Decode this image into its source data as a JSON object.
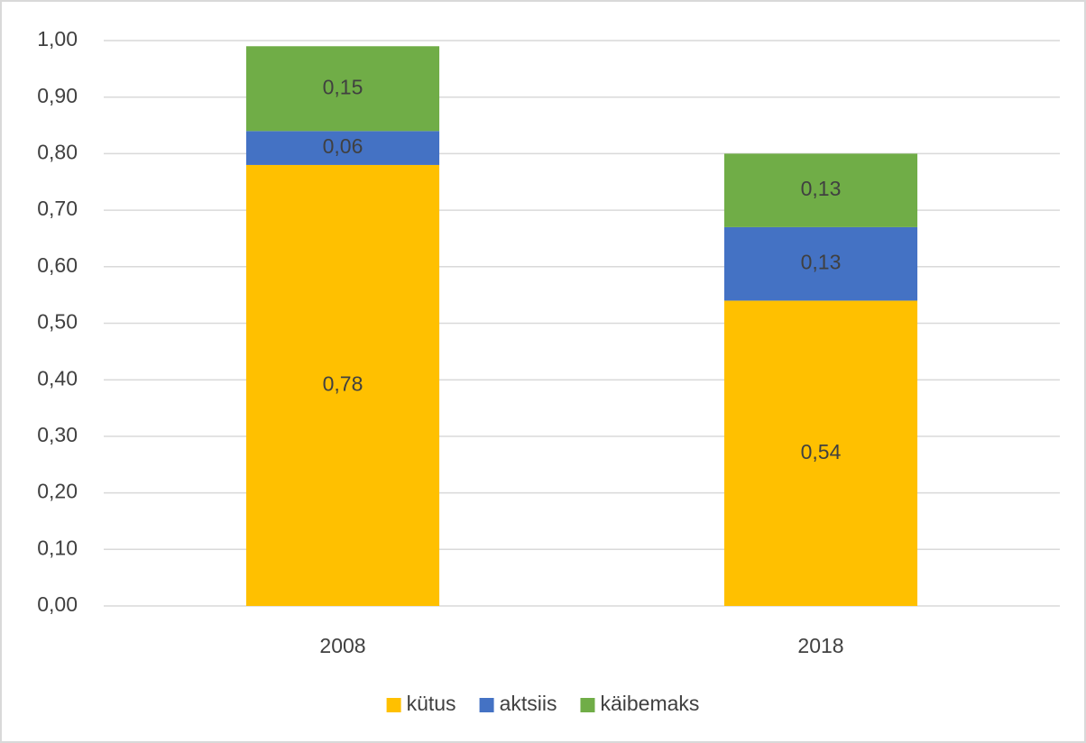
{
  "chart_data": {
    "type": "stacked_bar",
    "categories": [
      "2008",
      "2018"
    ],
    "series": [
      {
        "name": "kütus",
        "color": "#ffc000",
        "values": [
          0.78,
          0.54
        ],
        "value_labels": [
          "0,78",
          "0,54"
        ]
      },
      {
        "name": "aktsiis",
        "color": "#4472c4",
        "values": [
          0.06,
          0.13
        ],
        "value_labels": [
          "0,06",
          "0,13"
        ]
      },
      {
        "name": "käibemaks",
        "color": "#70ad47",
        "values": [
          0.15,
          0.13
        ],
        "value_labels": [
          "0,15",
          "0,13"
        ]
      }
    ],
    "ylim": [
      0,
      1
    ],
    "yticks": [
      {
        "value": 0,
        "label": "0,00"
      },
      {
        "value": 0.1,
        "label": "0,10"
      },
      {
        "value": 0.2,
        "label": "0,20"
      },
      {
        "value": 0.3,
        "label": "0,30"
      },
      {
        "value": 0.4,
        "label": "0,40"
      },
      {
        "value": 0.5,
        "label": "0,50"
      },
      {
        "value": 0.6,
        "label": "0,60"
      },
      {
        "value": 0.7,
        "label": "0,70"
      },
      {
        "value": 0.8,
        "label": "0,80"
      },
      {
        "value": 0.9,
        "label": "0,90"
      },
      {
        "value": 1,
        "label": "1,00"
      }
    ],
    "grid": true,
    "legend": "bottom"
  }
}
